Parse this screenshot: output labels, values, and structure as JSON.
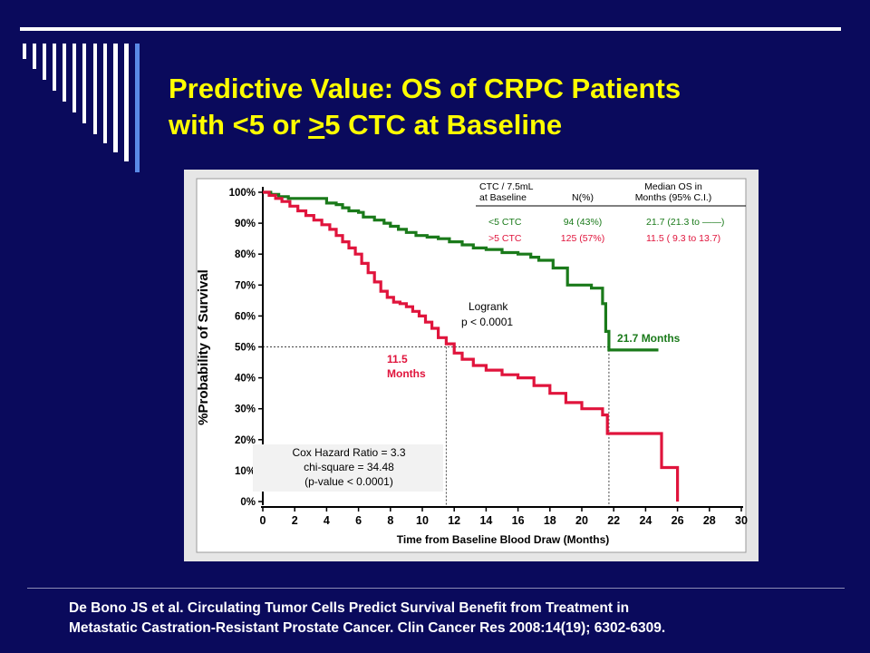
{
  "slide": {
    "title_line1": "Predictive Value: OS of CRPC Patients",
    "title_line2_pre": "with <5 or ",
    "title_line2_gt": ">",
    "title_line2_post": "5 CTC at Baseline",
    "citation_line1": "De Bono JS et al. Circulating Tumor Cells Predict Survival Benefit from Treatment in",
    "citation_line2": "Metastatic Castration-Resistant Prostate Cancer.  Clin Cancer Res 2008:14(19); 6302-6309."
  },
  "colors": {
    "background": "#0a0a5c",
    "title": "#ffff00",
    "series_low": "#1a7a1a",
    "series_high": "#e0143c"
  },
  "chart_data": {
    "type": "line",
    "step": true,
    "xlabel": "Time from Baseline Blood Draw (Months)",
    "ylabel": "%Probability of Survival",
    "xlim": [
      0,
      30
    ],
    "ylim": [
      0,
      100
    ],
    "xticks": [
      0,
      2,
      4,
      6,
      8,
      10,
      12,
      14,
      16,
      18,
      20,
      22,
      24,
      26,
      28,
      30
    ],
    "xtick_labels": [
      "0",
      "2",
      "4",
      "6",
      "8",
      "10",
      "12",
      "14",
      "16",
      "18",
      "20",
      "22",
      "24",
      "26",
      "28",
      "30"
    ],
    "yticks": [
      0,
      10,
      20,
      30,
      40,
      50,
      60,
      70,
      80,
      90,
      100
    ],
    "ytick_labels": [
      "0%",
      "10%",
      "20%",
      "30%",
      "40%",
      "50%",
      "60%",
      "70%",
      "80%",
      "90%",
      "100%"
    ],
    "reference_lines": [
      {
        "axis": "y",
        "value": 50
      },
      {
        "axis": "x",
        "value": 11.5
      },
      {
        "axis": "x",
        "value": 21.7
      }
    ],
    "legend": {
      "header_col1": "CTC / 7.5mL",
      "header_col1b": "at Baseline",
      "header_col2": "N(%)",
      "header_col3": "Median OS in",
      "header_col3b": "Months (95% C.I.)",
      "rows": [
        {
          "label": "<5 CTC",
          "n": "94 (43%)",
          "median": "21.7 (21.3 to ——)"
        },
        {
          "label": ">5 CTC",
          "n": "125 (57%)",
          "median": "11.5  ( 9.3 to 13.7)"
        }
      ]
    },
    "annotations": {
      "logrank_line1": "Logrank",
      "logrank_line2": "p < 0.0001",
      "median_low": "21.7 Months",
      "median_high_1": "11.5",
      "median_high_2": "Months",
      "cox_1": "Cox Hazard Ratio = 3.3",
      "cox_2": "chi-square = 34.48",
      "cox_3": "(p-value < 0.0001)"
    },
    "series": [
      {
        "name": "<5 CTC",
        "x": [
          0,
          0.5,
          1,
          1.6,
          2.5,
          3.4,
          4,
          4.6,
          5,
          5.4,
          6,
          6.3,
          7,
          7.6,
          8,
          8.5,
          9,
          9.6,
          10.3,
          11,
          11.7,
          12.5,
          13.2,
          14,
          15,
          16,
          16.8,
          17.3,
          18.2,
          19.1,
          20.6,
          21.3,
          21.5,
          21.7,
          23.3,
          24.8
        ],
        "y": [
          100,
          99.3,
          98.6,
          98,
          98,
          98,
          96.5,
          96,
          95,
          94,
          93.5,
          92,
          91,
          90,
          89,
          88,
          87,
          86,
          85.5,
          85,
          84,
          83,
          82,
          81.5,
          80.5,
          80,
          79,
          78,
          75.5,
          70,
          69,
          64,
          55,
          49,
          49,
          49
        ]
      },
      {
        "name": ">5 CTC",
        "x": [
          0,
          0.4,
          0.8,
          1.2,
          1.7,
          2.2,
          2.7,
          3.2,
          3.7,
          4.2,
          4.6,
          5,
          5.4,
          5.8,
          6.2,
          6.6,
          7,
          7.4,
          7.8,
          8.2,
          8.6,
          9,
          9.4,
          9.8,
          10.2,
          10.6,
          11,
          11.5,
          12,
          12.5,
          13.2,
          14,
          15,
          16,
          17,
          18,
          19,
          20,
          21.3,
          21.6,
          25,
          26
        ],
        "y": [
          100,
          99,
          98,
          97,
          95.5,
          94,
          92.5,
          91,
          89.5,
          88,
          86,
          84,
          82,
          80,
          77,
          74,
          71,
          68,
          66,
          64.5,
          64,
          63,
          61.5,
          60,
          58,
          56,
          53,
          51,
          48,
          46,
          44,
          42.5,
          41,
          40,
          37.5,
          35,
          32,
          30,
          28,
          22,
          11,
          0
        ]
      }
    ]
  }
}
